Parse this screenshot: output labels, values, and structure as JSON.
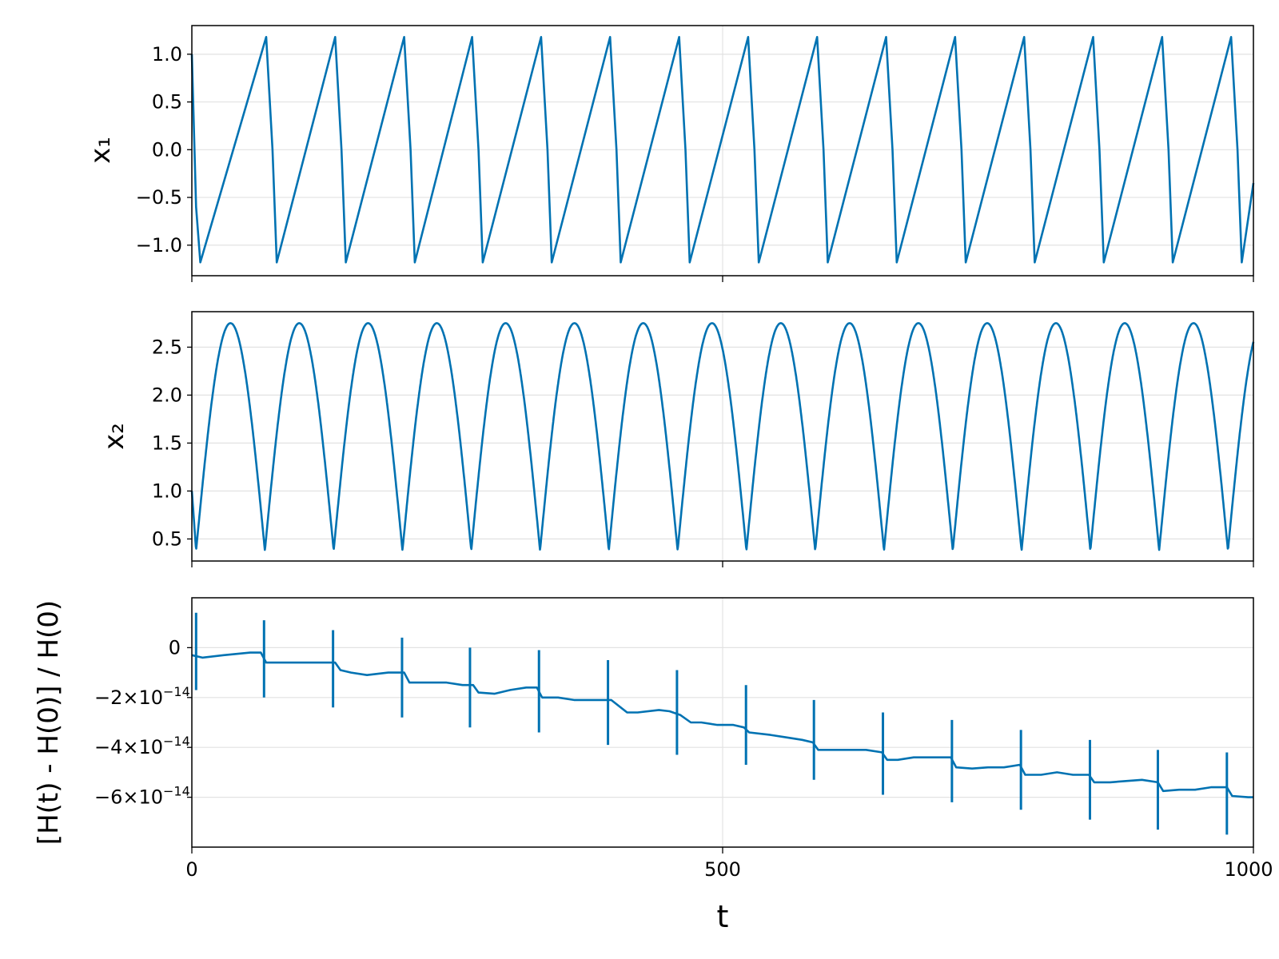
{
  "chart_data": [
    {
      "type": "line",
      "ylabel": "x₁",
      "xlabel": "",
      "xlim": [
        0,
        1000
      ],
      "ylim": [
        -1.32,
        1.3
      ],
      "yticks": [
        1.0,
        0.5,
        0.0,
        -0.5,
        -1.0
      ],
      "ytick_labels": [
        "1.0",
        "0.5",
        "0.0",
        "−0.5",
        "−1.0"
      ],
      "xticks": [
        0,
        500,
        1000
      ],
      "grid": true,
      "color": "#0072b2",
      "series": [
        {
          "x": [
            0,
            4,
            8,
            70,
            76,
            80,
            135,
            141,
            145,
            200,
            206,
            210,
            264,
            270,
            274,
            329,
            335,
            339,
            394,
            400,
            404,
            459,
            465,
            469,
            524,
            530,
            534,
            589,
            595,
            599,
            654,
            660,
            664,
            719,
            725,
            729,
            784,
            790,
            794,
            849,
            855,
            859,
            914,
            920,
            924,
            979,
            985,
            989,
            1000
          ],
          "values": [
            1.0,
            -0.6,
            -1.18,
            1.18,
            0.0,
            -1.18,
            1.18,
            0.0,
            -1.18,
            1.18,
            0.0,
            -1.18,
            1.18,
            0.0,
            -1.18,
            1.18,
            0.0,
            -1.18,
            1.18,
            0.0,
            -1.18,
            1.18,
            0.0,
            -1.18,
            1.18,
            0.0,
            -1.18,
            1.18,
            0.0,
            -1.18,
            1.18,
            0.0,
            -1.18,
            1.18,
            0.0,
            -1.18,
            1.18,
            0.0,
            -1.18,
            1.18,
            0.0,
            -1.18,
            1.18,
            0.0,
            -1.18,
            1.18,
            0.0,
            -1.18,
            -0.35
          ]
        }
      ]
    },
    {
      "type": "line",
      "ylabel": "x₂",
      "xlabel": "",
      "xlim": [
        0,
        1000
      ],
      "ylim": [
        0.27,
        2.87
      ],
      "yticks": [
        2.5,
        2.0,
        1.5,
        1.0,
        0.5
      ],
      "ytick_labels": [
        "2.5",
        "2.0",
        "1.5",
        "1.0",
        "0.5"
      ],
      "xticks": [
        0,
        500,
        1000
      ],
      "grid": true,
      "color": "#0072b2",
      "arch_period": 64.8,
      "arch_min": 0.38,
      "arch_max": 2.75,
      "first_minimum_t": 4,
      "end_value": 2.68
    },
    {
      "type": "line",
      "ylabel": "[H(t) - H(0)] / H(0)",
      "xlabel": "t",
      "xlim": [
        0,
        1000
      ],
      "ylim": [
        -8e-14,
        2e-14
      ],
      "yticks": [
        0,
        -2e-14,
        -4e-14,
        -6e-14
      ],
      "ytick_labels": [
        "0",
        "−2×10",
        "−4×10",
        "−6×10"
      ],
      "ytick_exponent": "−14",
      "xticks": [
        0,
        500,
        1000
      ],
      "xtick_labels": [
        "0",
        "500",
        "1000"
      ],
      "grid": true,
      "color": "#0072b2",
      "series": [
        {
          "x": [
            0,
            10,
            30,
            55,
            65,
            70,
            90,
            110,
            125,
            135,
            140,
            150,
            165,
            185,
            200,
            205,
            215,
            240,
            255,
            265,
            270,
            285,
            300,
            315,
            325,
            330,
            345,
            360,
            375,
            385,
            395,
            410,
            420,
            440,
            450,
            460,
            470,
            480,
            495,
            510,
            520,
            525,
            545,
            560,
            575,
            585,
            590,
            605,
            620,
            635,
            650,
            655,
            665,
            680,
            700,
            715,
            720,
            735,
            750,
            765,
            780,
            785,
            800,
            815,
            830,
            845,
            850,
            865,
            880,
            895,
            910,
            915,
            930,
            945,
            960,
            975,
            980,
            995,
            1000
          ],
          "values": [
            -3e-15,
            -4e-15,
            -3e-15,
            -2e-15,
            -2e-15,
            -6e-15,
            -6e-15,
            -6e-15,
            -6e-15,
            -6e-15,
            -9e-15,
            -1e-14,
            -1.1e-14,
            -1e-14,
            -1e-14,
            -1.4e-14,
            -1.4e-14,
            -1.4e-14,
            -1.5e-14,
            -1.5e-14,
            -1.8e-14,
            -1.85e-14,
            -1.7e-14,
            -1.6e-14,
            -1.6e-14,
            -2e-14,
            -2e-14,
            -2.1e-14,
            -2.1e-14,
            -2.1e-14,
            -2.1e-14,
            -2.6e-14,
            -2.6e-14,
            -2.5e-14,
            -2.55e-14,
            -2.7e-14,
            -3e-14,
            -3e-14,
            -3.1e-14,
            -3.1e-14,
            -3.2e-14,
            -3.4e-14,
            -3.5e-14,
            -3.6e-14,
            -3.7e-14,
            -3.8e-14,
            -4.1e-14,
            -4.1e-14,
            -4.1e-14,
            -4.1e-14,
            -4.2e-14,
            -4.5e-14,
            -4.5e-14,
            -4.4e-14,
            -4.4e-14,
            -4.4e-14,
            -4.8e-14,
            -4.85e-14,
            -4.8e-14,
            -4.8e-14,
            -4.7e-14,
            -5.1e-14,
            -5.1e-14,
            -5e-14,
            -5.1e-14,
            -5.1e-14,
            -5.4e-14,
            -5.4e-14,
            -5.35e-14,
            -5.3e-14,
            -5.4e-14,
            -5.75e-14,
            -5.7e-14,
            -5.7e-14,
            -5.6e-14,
            -5.6e-14,
            -5.95e-14,
            -6e-14,
            -6e-14
          ]
        }
      ],
      "spikes": [
        {
          "t": 4,
          "high": 1.4e-14,
          "low": -1.7e-14
        },
        {
          "t": 68,
          "high": 1.1e-14,
          "low": -2e-14
        },
        {
          "t": 133,
          "high": 7e-15,
          "low": -2.4e-14
        },
        {
          "t": 198,
          "high": 4e-15,
          "low": -2.8e-14
        },
        {
          "t": 262,
          "high": 0.0,
          "low": -3.2e-14
        },
        {
          "t": 327,
          "high": -1e-15,
          "low": -3.4e-14
        },
        {
          "t": 392,
          "high": -5e-15,
          "low": -3.9e-14
        },
        {
          "t": 457,
          "high": -9e-15,
          "low": -4.3e-14
        },
        {
          "t": 522,
          "high": -1.5e-14,
          "low": -4.7e-14
        },
        {
          "t": 586,
          "high": -2.1e-14,
          "low": -5.3e-14
        },
        {
          "t": 651,
          "high": -2.6e-14,
          "low": -5.9e-14
        },
        {
          "t": 716,
          "high": -2.9e-14,
          "low": -6.2e-14
        },
        {
          "t": 781,
          "high": -3.3e-14,
          "low": -6.5e-14
        },
        {
          "t": 846,
          "high": -3.7e-14,
          "low": -6.9e-14
        },
        {
          "t": 910,
          "high": -4.1e-14,
          "low": -7.3e-14
        },
        {
          "t": 975,
          "high": -4.2e-14,
          "low": -7.5e-14
        }
      ]
    }
  ]
}
